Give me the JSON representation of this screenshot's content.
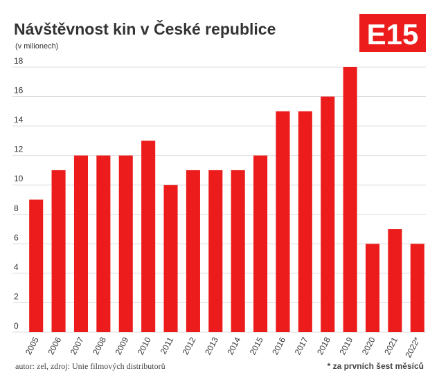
{
  "chart_data": {
    "type": "bar",
    "title": "Návštěvnost kin v České republice",
    "subtitle": "(v milionech)",
    "logo": "E15",
    "categories": [
      "2005",
      "2006",
      "2007",
      "2008",
      "2009",
      "2010",
      "2011",
      "2012",
      "2013",
      "2014",
      "2015",
      "2016",
      "2017",
      "2018",
      "2019",
      "2020",
      "2021",
      "2022*"
    ],
    "values": [
      9,
      11,
      12,
      12,
      12,
      13,
      10,
      11,
      11,
      11,
      12,
      15,
      15,
      16,
      18,
      6,
      7,
      6
    ],
    "color": "#ec1c1c",
    "ylim": [
      0,
      18
    ],
    "yticks": [
      0,
      2,
      4,
      6,
      8,
      10,
      12,
      14,
      16,
      18
    ],
    "grid": true,
    "source": "autor: zel, zdroj: Unie filmových distributorů",
    "note": "* za prvních šest měsíců"
  }
}
